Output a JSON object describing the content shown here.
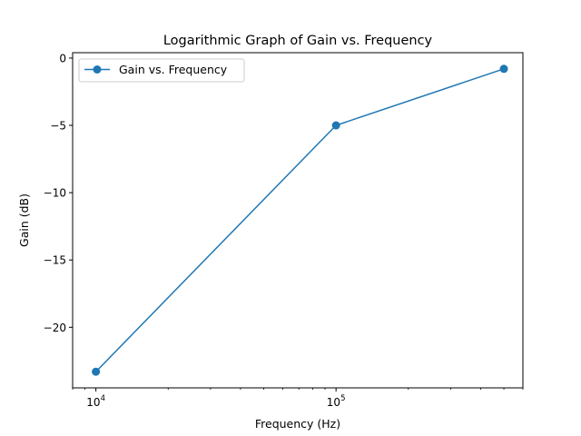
{
  "colors": {
    "series": "#1f77b4",
    "axes": "#000000",
    "background": "#ffffff"
  },
  "chart_data": {
    "type": "line",
    "title": "Logarithmic Graph of Gain vs. Frequency",
    "xlabel": "Frequency (Hz)",
    "ylabel": "Gain (dB)",
    "xscale": "log",
    "xlim": [
      8000,
      600000
    ],
    "ylim": [
      -24.5,
      0.4
    ],
    "grid": false,
    "legend": "top-left",
    "x_ticks": [
      {
        "value": 10000,
        "base": "10",
        "exp": "4"
      },
      {
        "value": 100000,
        "base": "10",
        "exp": "5"
      }
    ],
    "y_ticks": [
      {
        "value": 0,
        "label": "0"
      },
      {
        "value": -5,
        "label": "−5"
      },
      {
        "value": -10,
        "label": "−10"
      },
      {
        "value": -15,
        "label": "−15"
      },
      {
        "value": -20,
        "label": "−20"
      }
    ],
    "series": [
      {
        "name": "Gain vs. Frequency",
        "marker": "circle",
        "x": [
          10000,
          100000,
          500000
        ],
        "y": [
          -23.3,
          -5.0,
          -0.8
        ]
      }
    ]
  }
}
